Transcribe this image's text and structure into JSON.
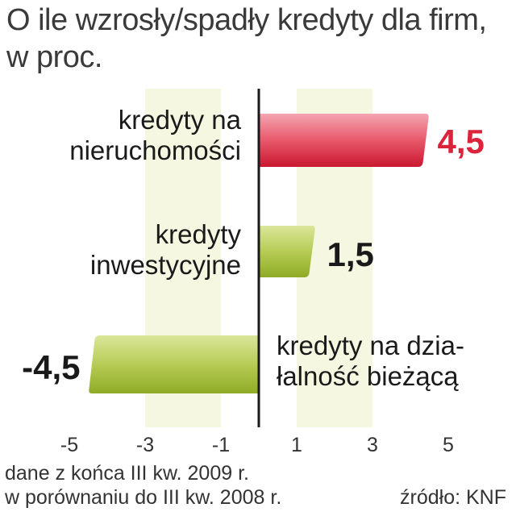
{
  "title_line1": "O ile wzrosły/spadły kredyty dla firm,",
  "title_line2": "w proc.",
  "footnote_line1": "dane z końca III kw. 2009 r.",
  "footnote_line2": "w porównaniu do III kw. 2008 r.",
  "source": "źródło: KNF",
  "colors": {
    "positive_red": "#d9243c",
    "green": "#a8c240",
    "band": "#f6f7e0",
    "axis": "#1a1a1a",
    "value_red": "#d9243c",
    "value_dark": "#1a1a1a"
  },
  "chart_data": {
    "type": "bar",
    "orientation": "horizontal",
    "xlim": [
      -5,
      5
    ],
    "ticks": [
      "-5",
      "-3",
      "-1",
      "1",
      "3",
      "5"
    ],
    "tick_values": [
      -5,
      -3,
      -1,
      1,
      3,
      5
    ],
    "categories": [
      [
        "kredyty na",
        "nieruchomości"
      ],
      [
        "kredyty",
        "inwestycyjne"
      ],
      [
        "kredyty na dzia-",
        "łalność bieżącą"
      ]
    ],
    "values": [
      4.5,
      1.5,
      -4.5
    ],
    "value_labels": [
      "4,5",
      "1,5",
      "-4,5"
    ],
    "bar_colors": [
      "red",
      "green",
      "green"
    ],
    "grid": "alternating bands"
  }
}
